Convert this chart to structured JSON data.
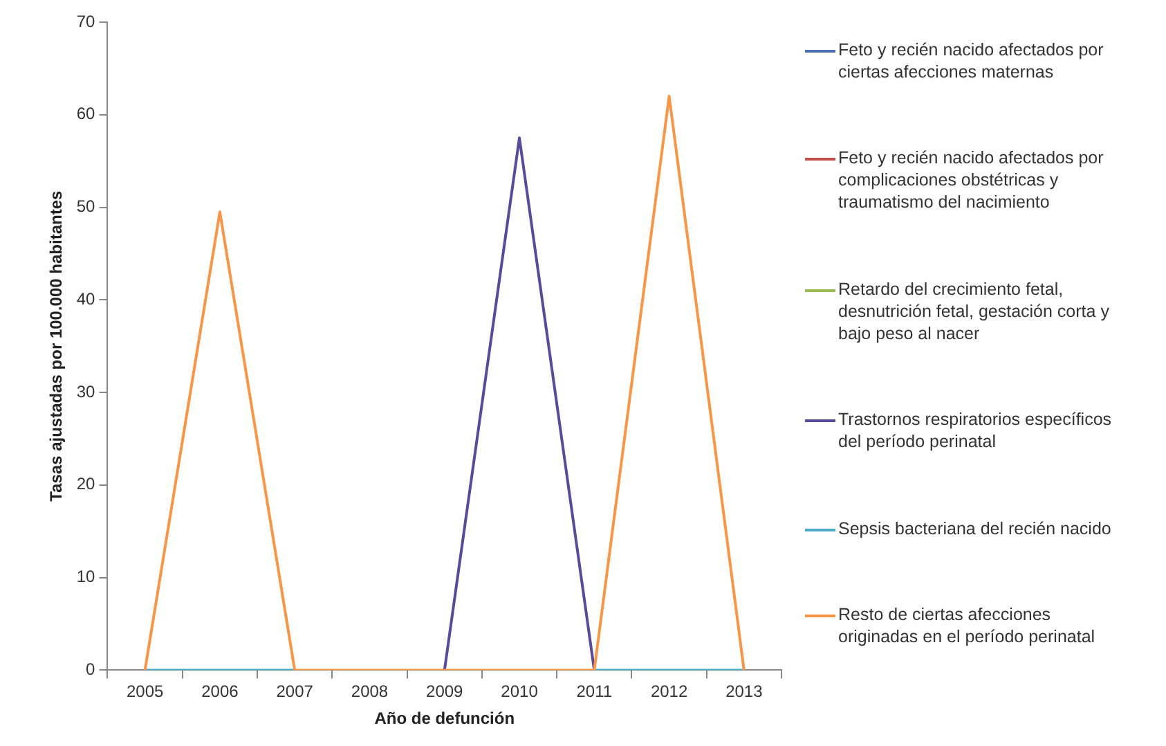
{
  "chart_data": {
    "type": "line",
    "xlabel": "Año de defunción",
    "ylabel": "Tasas ajustadas por 100.000 habitantes",
    "categories": [
      "2005",
      "2006",
      "2007",
      "2008",
      "2009",
      "2010",
      "2011",
      "2012",
      "2013"
    ],
    "ylim": [
      0,
      70
    ],
    "yticks": [
      0,
      10,
      20,
      30,
      40,
      50,
      60,
      70
    ],
    "legend": "right",
    "marker": "none",
    "series": [
      {
        "name": "Feto y recién nacido afectados por ciertas afecciones maternas",
        "color": "#4f6fb5",
        "values": [
          null,
          null,
          null,
          null,
          null,
          null,
          null,
          null,
          null
        ]
      },
      {
        "name": "Feto y recién nacido afectados por complicaciones obstétricas y traumatismo del nacimiento",
        "color": "#c0504d",
        "values": [
          null,
          null,
          null,
          null,
          null,
          null,
          null,
          null,
          null
        ]
      },
      {
        "name": "Retardo del crecimiento fetal, desnutrición fetal, gestación corta y bajo peso al nacer",
        "color": "#9bbb59",
        "values": [
          null,
          null,
          null,
          null,
          null,
          null,
          null,
          null,
          null
        ]
      },
      {
        "name": "Trastornos respiratorios específicos del período perinatal",
        "color": "#5b4a9a",
        "values": [
          null,
          null,
          null,
          null,
          0,
          57.5,
          0,
          null,
          null
        ]
      },
      {
        "name": "Sepsis bacteriana del recién nacido",
        "color": "#4bacc6",
        "values": [
          0,
          0,
          0,
          null,
          null,
          null,
          0,
          0,
          0
        ]
      },
      {
        "name": "Resto de ciertas afecciones originadas en el período perinatal",
        "color": "#f79646",
        "values": [
          0,
          49.5,
          0,
          0,
          0,
          0,
          0,
          62,
          0
        ]
      }
    ]
  }
}
